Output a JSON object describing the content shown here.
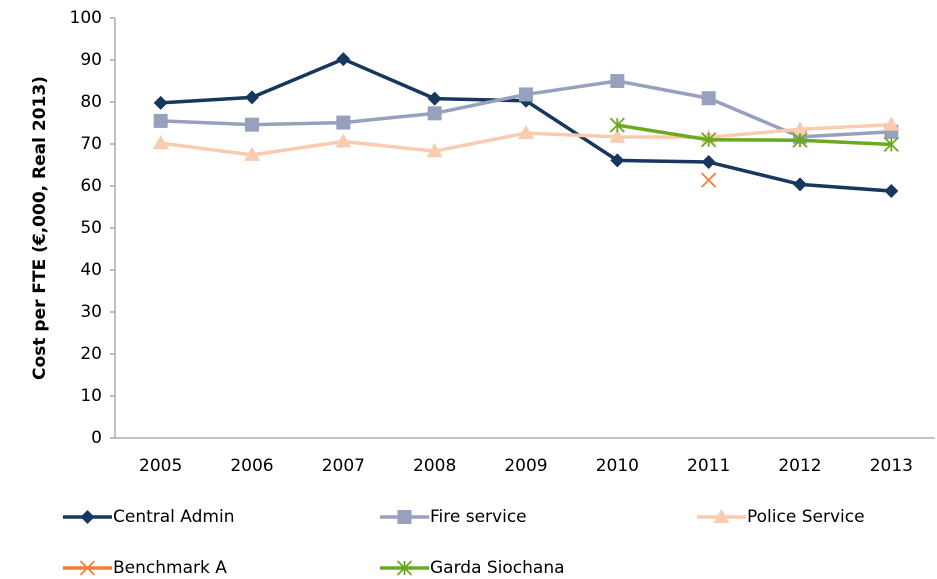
{
  "chart_data": {
    "type": "line",
    "y_label": "Cost per FTE (€,000, Real 2013)",
    "categories": [
      "2005",
      "2006",
      "2007",
      "2008",
      "2009",
      "2010",
      "2011",
      "2012",
      "2013"
    ],
    "series": [
      {
        "name": "Central Admin",
        "color": "#17375e",
        "marker": "diamond",
        "values": [
          79.8,
          81.1,
          90.2,
          80.8,
          80.3,
          66.1,
          65.7,
          60.4,
          58.8
        ]
      },
      {
        "name": "Fire service",
        "color": "#97a1bf",
        "marker": "square",
        "values": [
          75.5,
          74.6,
          75.1,
          77.3,
          81.8,
          85.0,
          80.9,
          71.7,
          72.9
        ]
      },
      {
        "name": "Police Service",
        "color": "#f9cbaf",
        "marker": "triangle",
        "values": [
          70.2,
          67.4,
          70.6,
          68.3,
          72.6,
          71.7,
          71.6,
          73.5,
          74.6
        ]
      },
      {
        "name": "Benchmark A",
        "color": "#f07f3c",
        "marker": "x",
        "values": [
          null,
          null,
          null,
          null,
          null,
          null,
          61.4,
          null,
          null
        ]
      },
      {
        "name": "Garda Siochana",
        "color": "#6aaa1e",
        "marker": "star",
        "values": [
          null,
          null,
          null,
          null,
          null,
          74.5,
          71.0,
          70.9,
          69.9
        ]
      }
    ],
    "ylim": [
      0,
      100
    ],
    "yticks": [
      0,
      10,
      20,
      30,
      40,
      50,
      60,
      70,
      80,
      90,
      100
    ],
    "grid": false
  }
}
